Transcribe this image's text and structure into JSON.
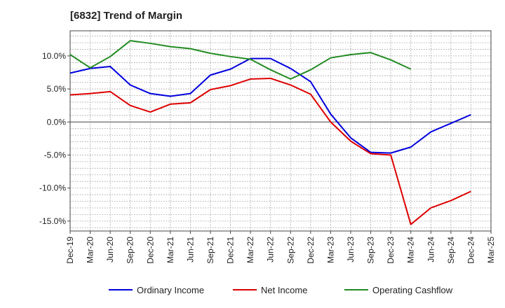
{
  "chart_data": {
    "type": "line",
    "title": "[6832]  Trend of Margin",
    "xlabel": "",
    "ylabel": "",
    "x": [
      "Dec-19",
      "Mar-20",
      "Jun-20",
      "Sep-20",
      "Dec-20",
      "Mar-21",
      "Jun-21",
      "Sep-21",
      "Dec-21",
      "Mar-22",
      "Jun-22",
      "Sep-22",
      "Dec-22",
      "Mar-23",
      "Jun-23",
      "Sep-23",
      "Dec-23",
      "Mar-24",
      "Jun-24",
      "Sep-24",
      "Dec-24",
      "Mar-25"
    ],
    "ylim": [
      -16.5,
      13.8
    ],
    "yticks": [
      10,
      5,
      0,
      -5,
      -10,
      -15
    ],
    "ytick_labels": [
      "10.0%",
      "5.0%",
      "0.0%",
      "-5.0%",
      "-10.0%",
      "-15.0%"
    ],
    "grid": true,
    "legend": "bottom",
    "series": [
      {
        "name": "Ordinary Income",
        "color": "#0000dd",
        "values": [
          7.4,
          8.1,
          8.4,
          5.6,
          4.3,
          3.9,
          4.3,
          7.1,
          8.0,
          9.6,
          9.6,
          8.1,
          6.1,
          1.2,
          -2.4,
          -4.6,
          -4.7,
          -3.8,
          -1.5,
          -0.2,
          1.1,
          null
        ]
      },
      {
        "name": "Net Income",
        "color": "#dd0000",
        "values": [
          4.1,
          4.3,
          4.6,
          2.5,
          1.5,
          2.7,
          2.9,
          4.9,
          5.5,
          6.5,
          6.6,
          5.6,
          4.2,
          0.0,
          -2.9,
          -4.8,
          -5.0,
          -15.5,
          -13.0,
          -11.9,
          -10.5,
          null
        ]
      },
      {
        "name": "Operating Cashflow",
        "color": "#228b22",
        "values": [
          10.2,
          8.2,
          9.9,
          12.3,
          11.9,
          11.4,
          11.1,
          10.4,
          9.9,
          9.5,
          7.9,
          6.5,
          7.9,
          9.7,
          10.2,
          10.5,
          9.4,
          8.0,
          null,
          null,
          null,
          null
        ]
      }
    ]
  }
}
